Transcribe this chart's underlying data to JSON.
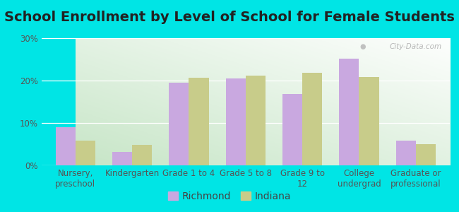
{
  "title": "School Enrollment by Level of School for Female Students",
  "categories": [
    "Nursery,\npreschool",
    "Kindergarten",
    "Grade 1 to 4",
    "Grade 5 to 8",
    "Grade 9 to\n12",
    "College\nundergrad",
    "Graduate or\nprofessional"
  ],
  "richmond": [
    9.0,
    3.2,
    19.5,
    20.5,
    16.8,
    25.2,
    5.8
  ],
  "indiana": [
    5.8,
    4.8,
    20.7,
    21.2,
    21.8,
    20.8,
    5.0
  ],
  "richmond_color": "#c9a8e0",
  "indiana_color": "#c8cc8a",
  "background_outer": "#00e5e5",
  "background_inner_topleft": "#e8f5e9",
  "background_inner_topright": "#f5f5f5",
  "background_inner_bottomleft": "#b2dfdb",
  "background_inner_bottomright": "#f5f5f5",
  "ylim": [
    0,
    30
  ],
  "yticks": [
    0,
    10,
    20,
    30
  ],
  "legend_labels": [
    "Richmond",
    "Indiana"
  ],
  "bar_width": 0.35,
  "title_fontsize": 14,
  "tick_fontsize": 8.5,
  "legend_fontsize": 10
}
